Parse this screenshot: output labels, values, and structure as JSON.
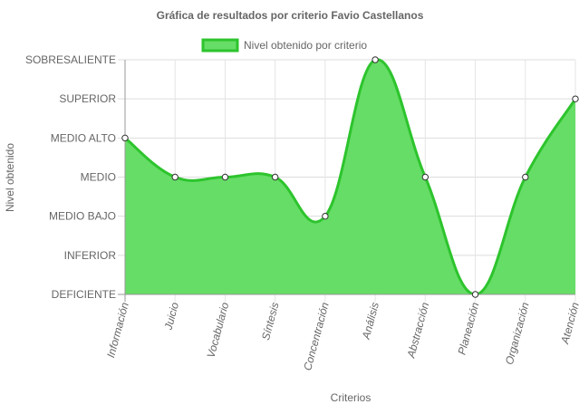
{
  "chart_data": {
    "type": "area",
    "title": "Gráfica de resultados por criterio Favio Castellanos",
    "xlabel": "Criterios",
    "ylabel": "Nivel obtenido",
    "y_levels": [
      "DEFICIENTE",
      "INFERIOR",
      "MEDIO BAJO",
      "MEDIO",
      "MEDIO ALTO",
      "SUPERIOR",
      "SOBRESALIENTE"
    ],
    "ylim": [
      "DEFICIENTE",
      "SOBRESALIENTE"
    ],
    "categories": [
      "Información",
      "Juicio",
      "Vocabulario",
      "Síntesis",
      "Concentración",
      "Análisis",
      "Abstracción",
      "Planeación",
      "Organización",
      "Atención"
    ],
    "series": [
      {
        "name": "Nivel obtenido por criterio",
        "values": [
          "MEDIO ALTO",
          "MEDIO",
          "MEDIO",
          "MEDIO",
          "MEDIO BAJO",
          "SOBRESALIENTE",
          "MEDIO",
          "DEFICIENTE",
          "MEDIO",
          "SUPERIOR"
        ],
        "color": "#2dc42d",
        "fill": "#66dd66"
      }
    ],
    "grid": true,
    "legend": "top-center",
    "smooth": true
  }
}
